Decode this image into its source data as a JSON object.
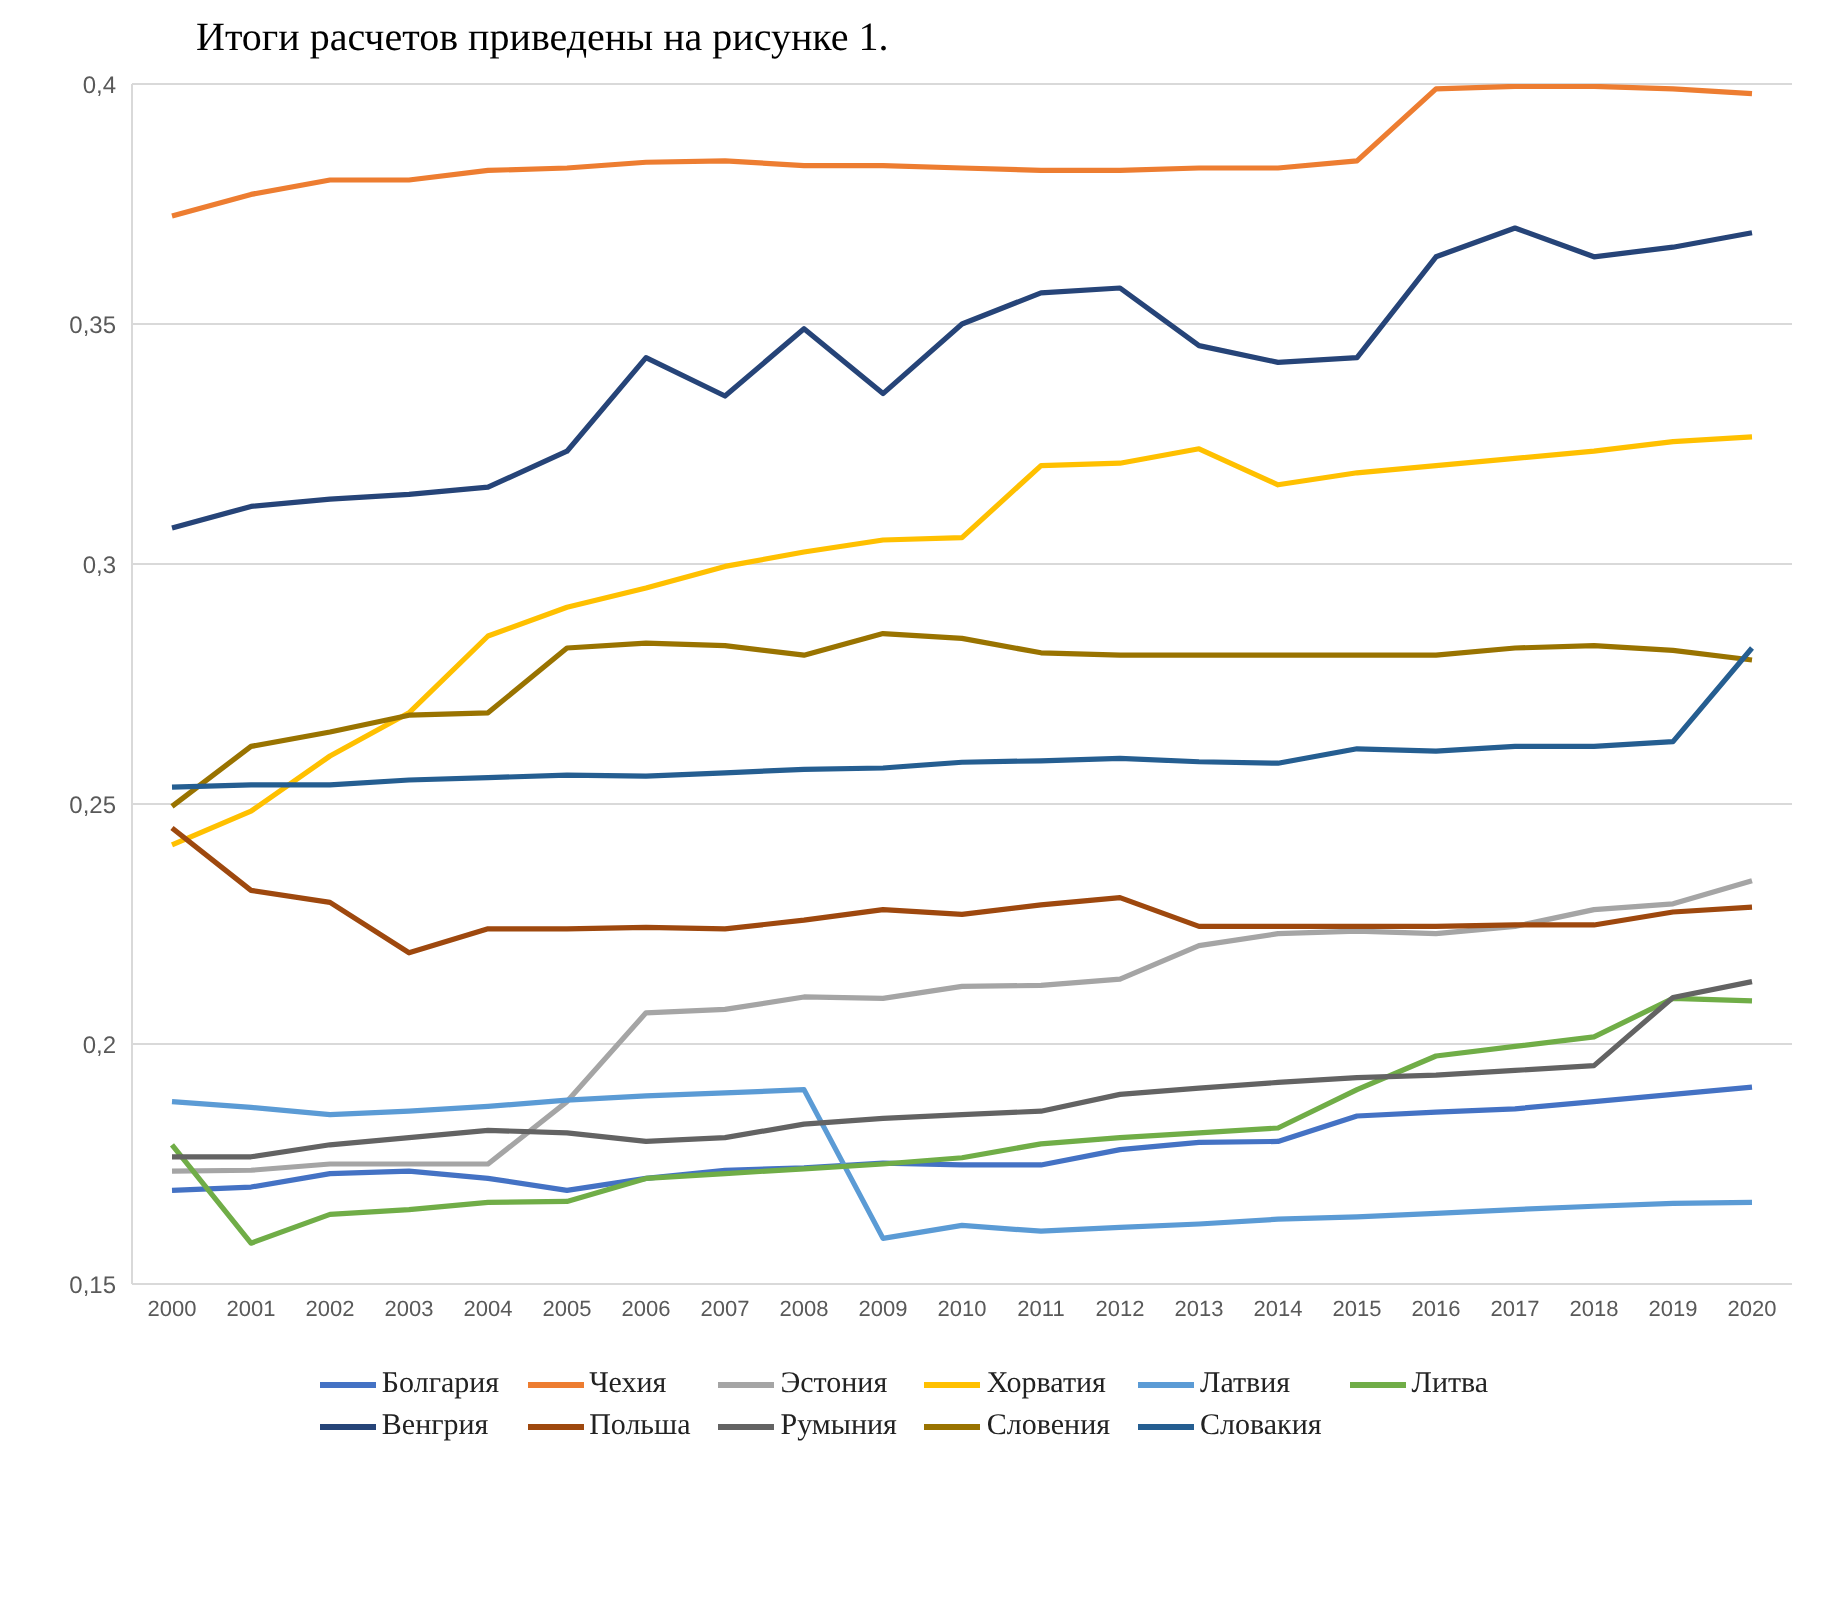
{
  "chart_data": {
    "type": "line",
    "annotations": [
      "Итоги расчетов приведены на рисунке 1."
    ],
    "categories": [
      "2000",
      "2001",
      "2002",
      "2003",
      "2004",
      "2005",
      "2006",
      "2007",
      "2008",
      "2009",
      "2010",
      "2011",
      "2012",
      "2013",
      "2014",
      "2015",
      "2016",
      "2017",
      "2018",
      "2019",
      "2020"
    ],
    "ylim": [
      0.15,
      0.4
    ],
    "yticks": [
      {
        "value": 0.15,
        "label": "0,15"
      },
      {
        "value": 0.2,
        "label": "0,2"
      },
      {
        "value": 0.25,
        "label": "0,25"
      },
      {
        "value": 0.3,
        "label": "0,3"
      },
      {
        "value": 0.35,
        "label": "0,35"
      },
      {
        "value": 0.4,
        "label": "0,4"
      }
    ],
    "grid": "y",
    "legend": "bottom",
    "marker": "none",
    "line_style": "solid",
    "series": [
      {
        "name": "Болгария",
        "color": "#4472c4",
        "values": [
          0.1695,
          0.1702,
          0.173,
          0.1735,
          0.172,
          0.1695,
          0.172,
          0.1737,
          0.1742,
          0.1752,
          0.1748,
          0.1748,
          0.178,
          0.1795,
          0.1797,
          0.185,
          0.1858,
          0.1865,
          0.188,
          0.1895,
          0.191
        ]
      },
      {
        "name": "Чехия",
        "color": "#ed7d31",
        "values": [
          0.3725,
          0.377,
          0.38,
          0.38,
          0.382,
          0.3825,
          0.3837,
          0.384,
          0.383,
          0.383,
          0.3825,
          0.382,
          0.382,
          0.3825,
          0.3825,
          0.384,
          0.399,
          0.3995,
          0.3995,
          0.399,
          0.398
        ]
      },
      {
        "name": "Эстония",
        "color": "#a5a5a5",
        "values": [
          0.1735,
          0.1737,
          0.175,
          0.175,
          0.175,
          0.188,
          0.2065,
          0.2072,
          0.2098,
          0.2095,
          0.212,
          0.2122,
          0.2135,
          0.2205,
          0.223,
          0.2235,
          0.223,
          0.2245,
          0.228,
          0.2292,
          0.234
        ]
      },
      {
        "name": "Хорватия",
        "color": "#ffc000",
        "values": [
          0.2415,
          0.2485,
          0.26,
          0.269,
          0.285,
          0.291,
          0.295,
          0.2995,
          0.3025,
          0.305,
          0.3055,
          0.3205,
          0.321,
          0.324,
          0.3165,
          0.319,
          0.3205,
          0.322,
          0.3235,
          0.3255,
          0.3265
        ]
      },
      {
        "name": "Латвия",
        "color": "#5b9bd5",
        "values": [
          0.188,
          0.1868,
          0.1853,
          0.186,
          0.187,
          0.1883,
          0.1892,
          0.1898,
          0.1905,
          0.1595,
          0.1622,
          0.161,
          0.1618,
          0.1625,
          0.1635,
          0.164,
          0.1647,
          0.1655,
          0.1662,
          0.1668,
          0.167
        ]
      },
      {
        "name": "Литва",
        "color": "#70ad47",
        "values": [
          0.179,
          0.1585,
          0.1645,
          0.1655,
          0.167,
          0.1672,
          0.172,
          0.173,
          0.174,
          0.175,
          0.1763,
          0.1792,
          0.1805,
          0.1815,
          0.1825,
          0.1905,
          0.1975,
          0.1995,
          0.2015,
          0.2095,
          0.209
        ]
      },
      {
        "name": "Венгрия",
        "color": "#264478",
        "values": [
          0.3075,
          0.312,
          0.3135,
          0.3145,
          0.316,
          0.3235,
          0.343,
          0.335,
          0.349,
          0.3355,
          0.35,
          0.3565,
          0.3575,
          0.3455,
          0.342,
          0.343,
          0.364,
          0.37,
          0.364,
          0.366,
          0.369
        ]
      },
      {
        "name": "Польша",
        "color": "#9e480e",
        "values": [
          0.245,
          0.232,
          0.2295,
          0.219,
          0.224,
          0.224,
          0.2243,
          0.224,
          0.2258,
          0.228,
          0.227,
          0.229,
          0.2305,
          0.2245,
          0.2245,
          0.2245,
          0.2245,
          0.2248,
          0.2248,
          0.2275,
          0.2285
        ]
      },
      {
        "name": "Румыния",
        "color": "#636363",
        "values": [
          0.1765,
          0.1765,
          0.179,
          0.1805,
          0.182,
          0.1815,
          0.1797,
          0.1805,
          0.1833,
          0.1845,
          0.1853,
          0.186,
          0.1895,
          0.1908,
          0.192,
          0.193,
          0.1935,
          0.1945,
          0.1955,
          0.2097,
          0.213
        ]
      },
      {
        "name": "Словения",
        "color": "#997300",
        "values": [
          0.2495,
          0.262,
          0.265,
          0.2685,
          0.269,
          0.2825,
          0.2835,
          0.283,
          0.281,
          0.2855,
          0.2845,
          0.2815,
          0.281,
          0.281,
          0.281,
          0.281,
          0.281,
          0.2825,
          0.283,
          0.282,
          0.28
        ]
      },
      {
        "name": "Словакия",
        "color": "#255e91",
        "values": [
          0.2535,
          0.254,
          0.254,
          0.255,
          0.2555,
          0.256,
          0.2558,
          0.2565,
          0.2572,
          0.2575,
          0.2587,
          0.259,
          0.2595,
          0.2588,
          0.2585,
          0.2615,
          0.261,
          0.262,
          0.262,
          0.263,
          0.2825
        ]
      }
    ]
  }
}
